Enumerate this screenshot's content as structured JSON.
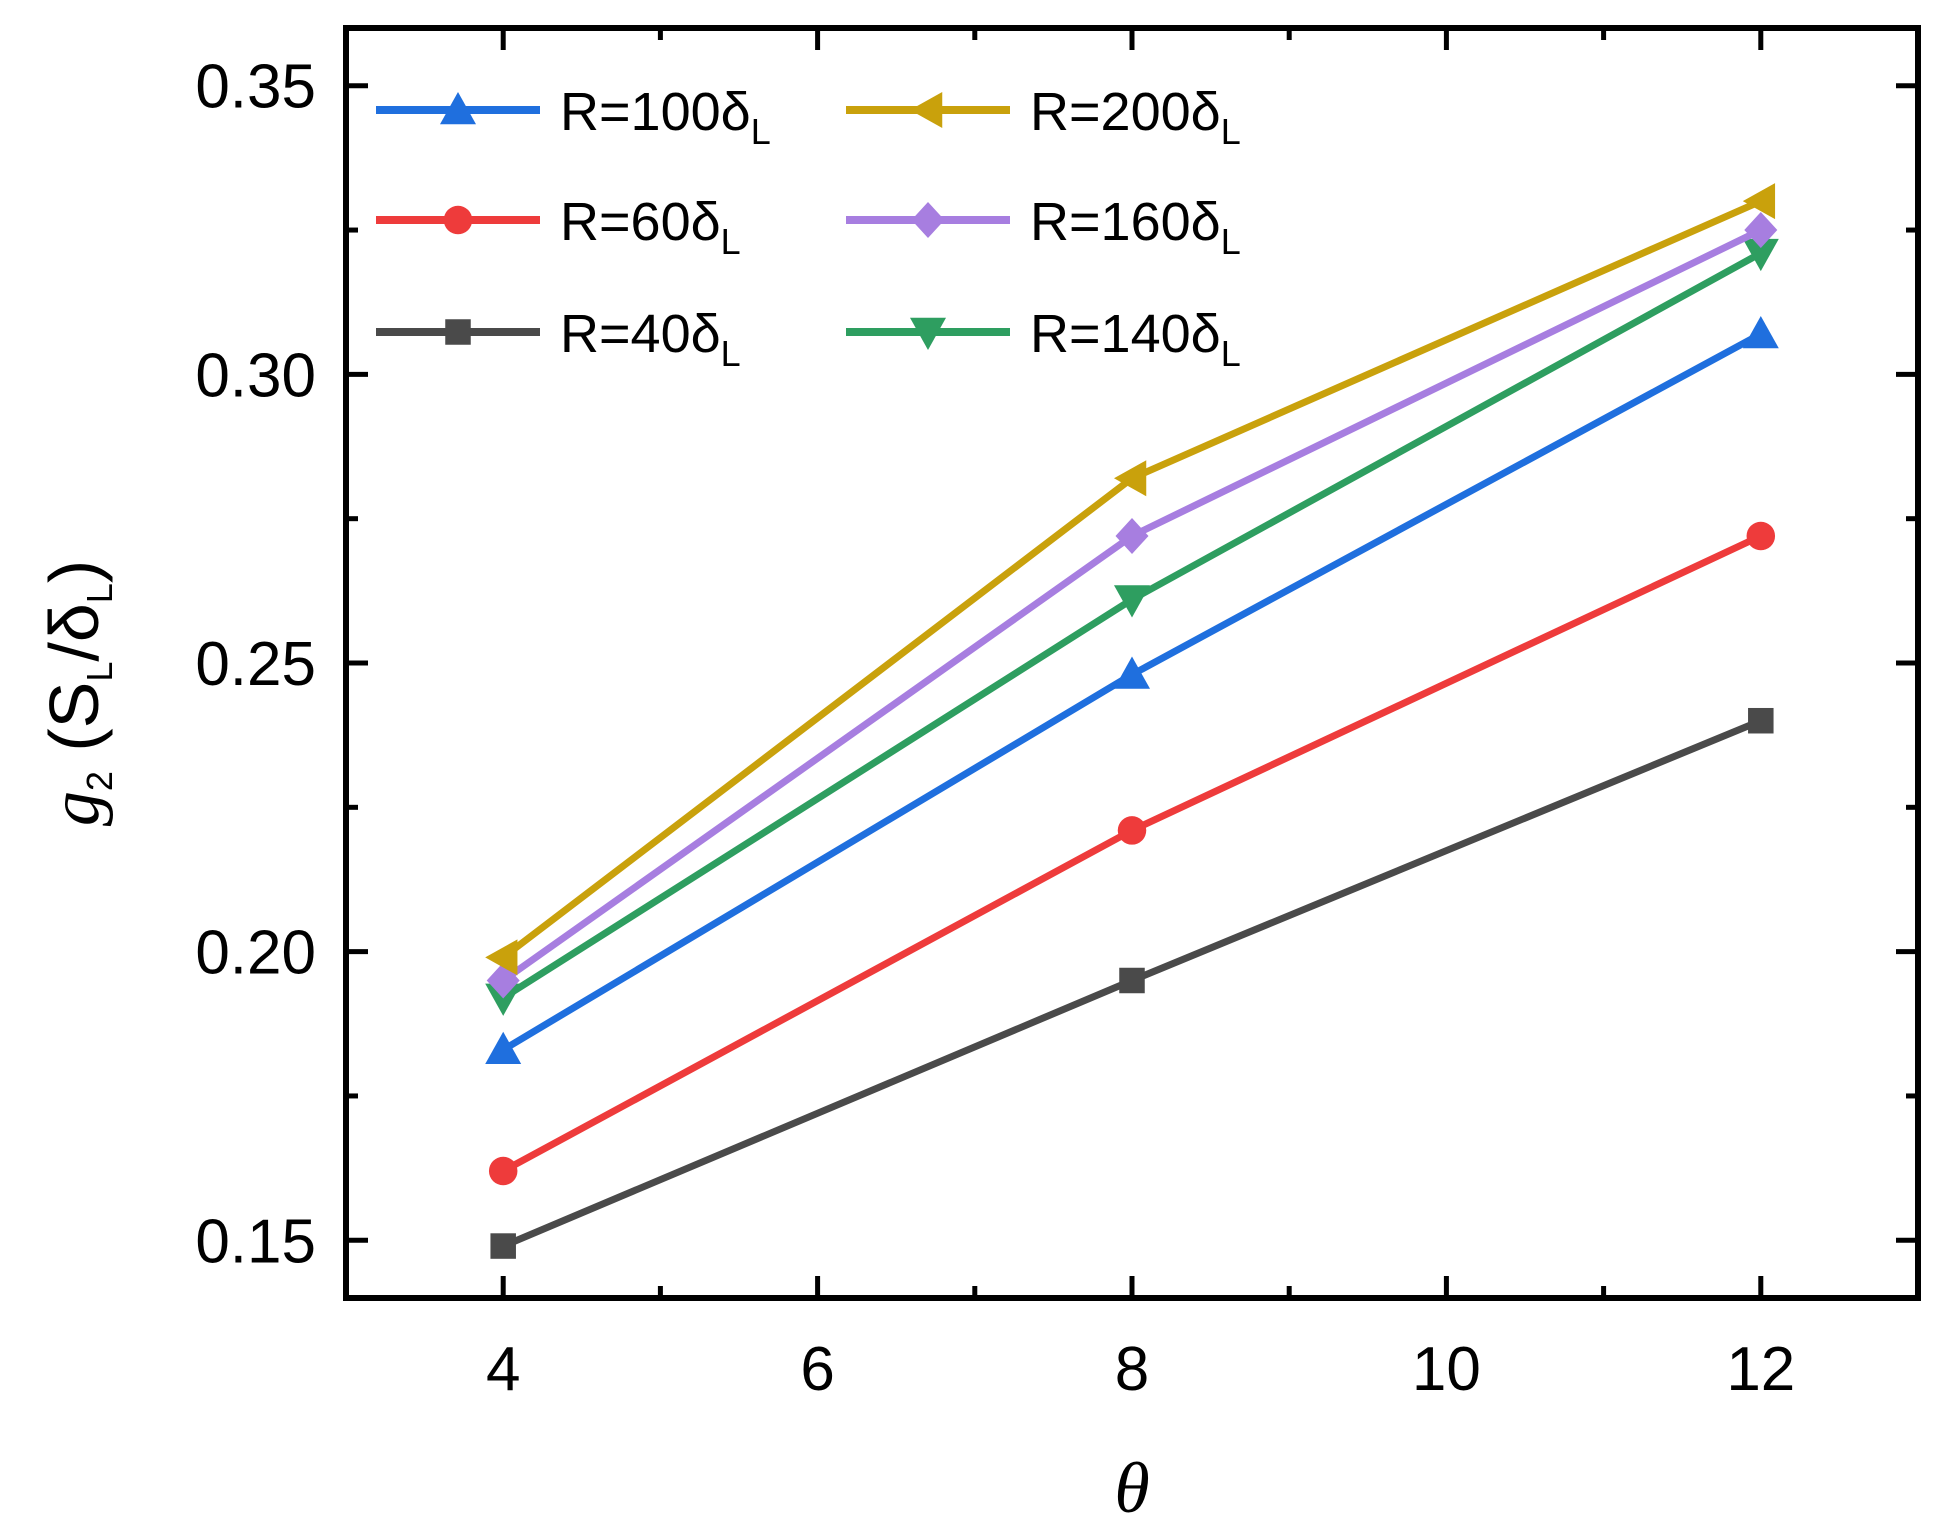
{
  "chart_data": {
    "type": "line",
    "title": "",
    "xlabel": "θ",
    "ylabel": {
      "symbol": "g",
      "symbol_sub": "2",
      "unit_open": " (S",
      "unit_sub1": "L",
      "unit_mid": "/δ",
      "unit_sub2": "L",
      "unit_close": ")"
    },
    "xlim": [
      3,
      13
    ],
    "ylim": [
      0.14,
      0.36
    ],
    "xticks": [
      4,
      6,
      8,
      10,
      12
    ],
    "xtick_labels": [
      "4",
      "6",
      "8",
      "10",
      "12"
    ],
    "yticks": [
      0.15,
      0.2,
      0.25,
      0.3,
      0.35
    ],
    "ytick_labels": [
      "0.15",
      "0.20",
      "0.25",
      "0.30",
      "0.35"
    ],
    "x": [
      4,
      8,
      12
    ],
    "legend_position": "top-left",
    "series": [
      {
        "name": "R=100δ",
        "name_sub": "L",
        "marker": "triangle-up",
        "color": "#1f6fde",
        "values": [
          0.183,
          0.248,
          0.307
        ]
      },
      {
        "name": "R=60δ",
        "name_sub": "L",
        "marker": "circle",
        "color": "#ee3b3b",
        "values": [
          0.162,
          0.221,
          0.272
        ]
      },
      {
        "name": "R=40δ",
        "name_sub": "L",
        "marker": "square",
        "color": "#4a4a4a",
        "values": [
          0.149,
          0.195,
          0.24
        ]
      },
      {
        "name": "R=200δ",
        "name_sub": "L",
        "marker": "triangle-left",
        "color": "#c9a10c",
        "values": [
          0.199,
          0.282,
          0.33
        ]
      },
      {
        "name": "R=160δ",
        "name_sub": "L",
        "marker": "diamond",
        "color": "#a77ee0",
        "values": [
          0.195,
          0.272,
          0.325
        ]
      },
      {
        "name": "R=140δ",
        "name_sub": "L",
        "marker": "triangle-down",
        "color": "#2e9e60",
        "values": [
          0.192,
          0.261,
          0.321
        ]
      }
    ]
  }
}
